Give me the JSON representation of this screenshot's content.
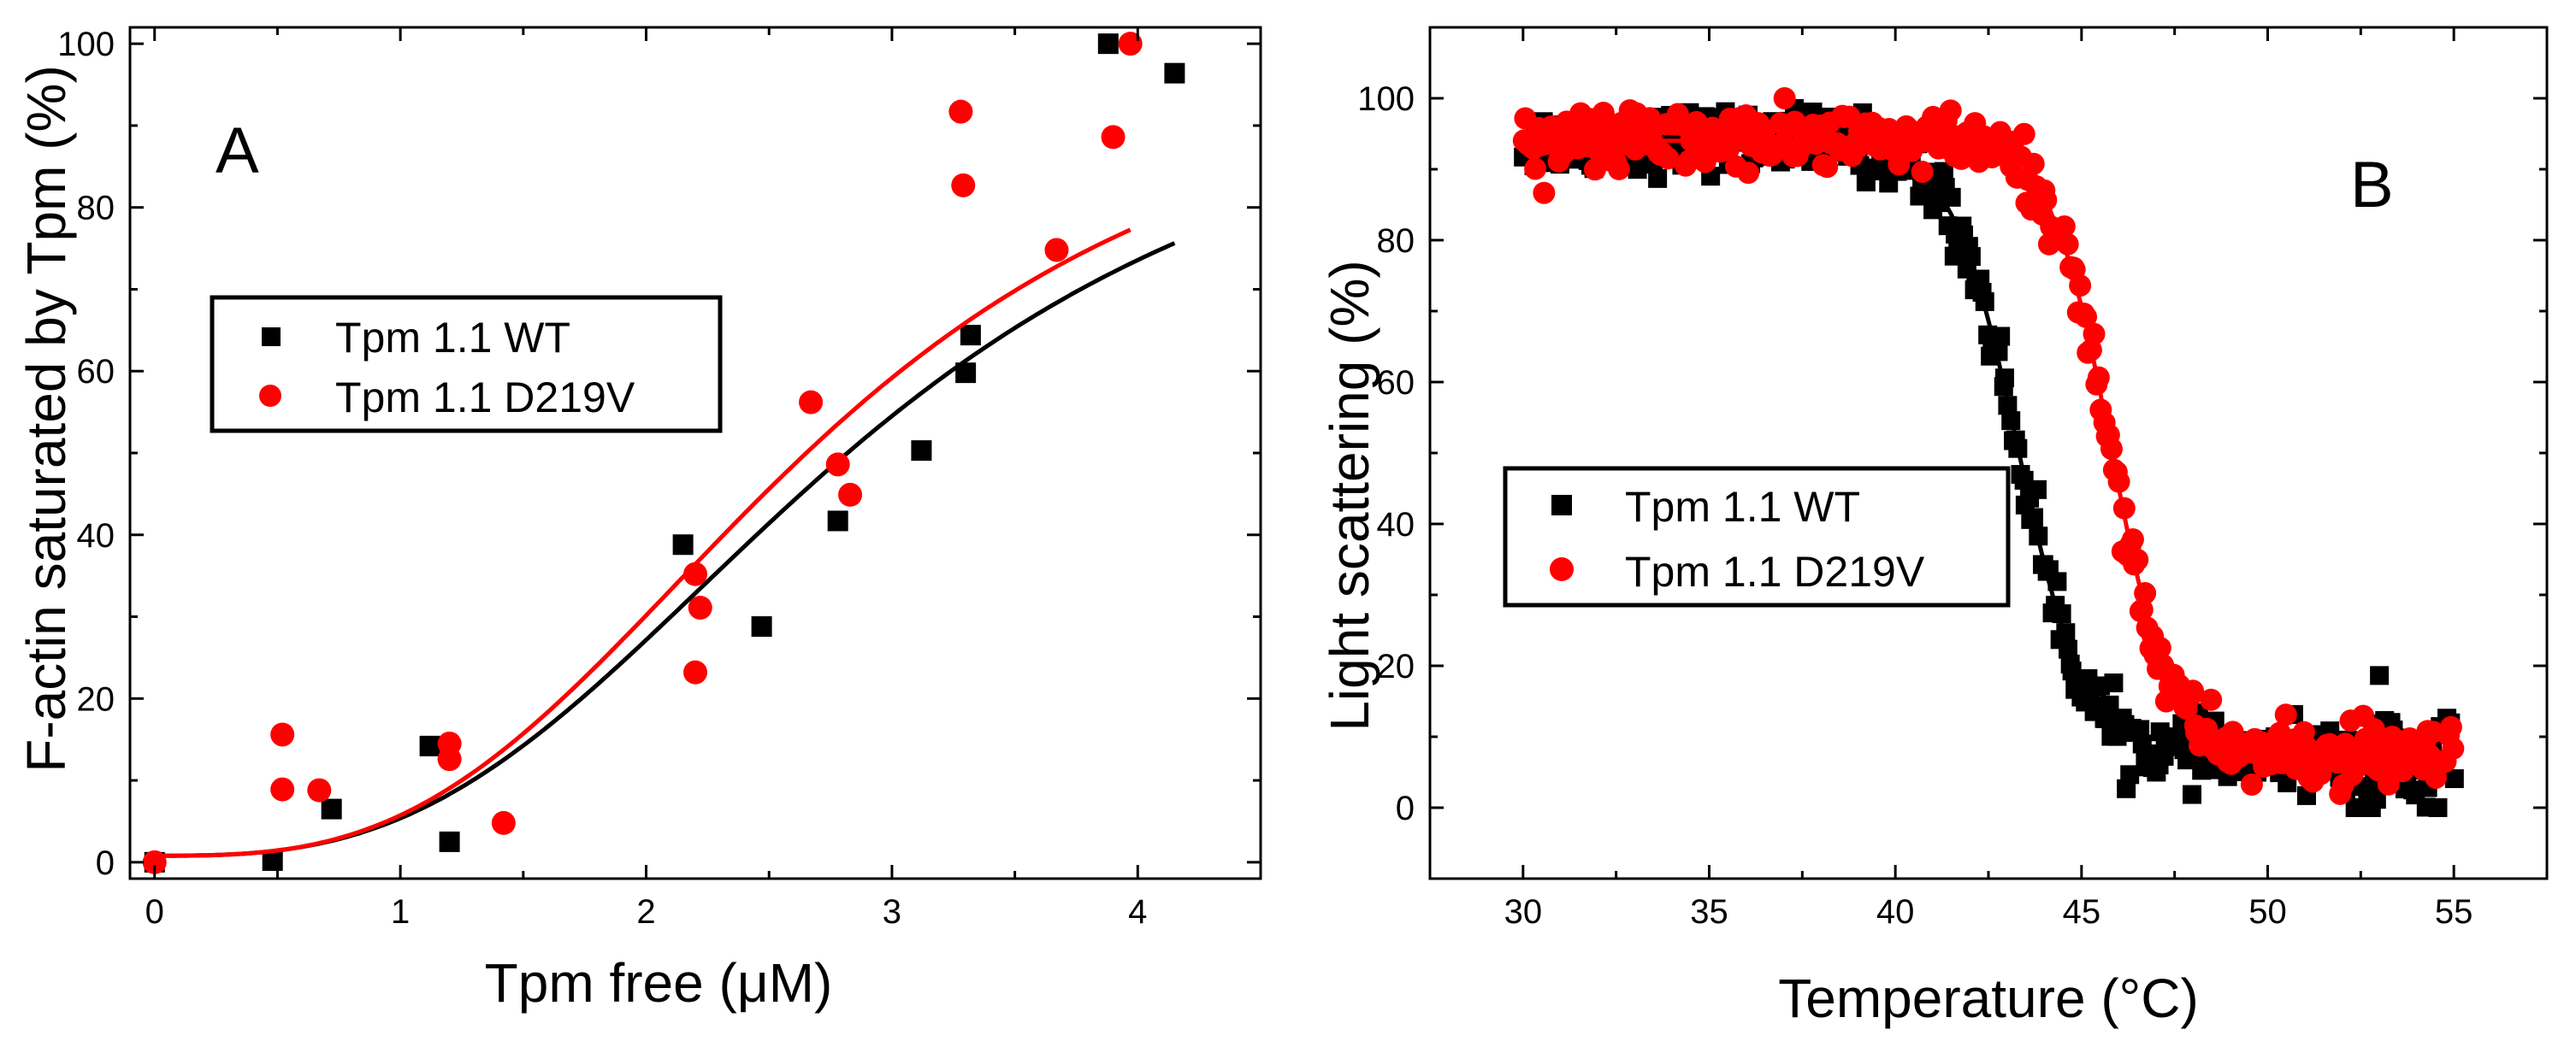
{
  "chart_data": [
    {
      "panel": "A",
      "type": "scatter",
      "panel_label": "A",
      "xlabel": "Tpm free (μM)",
      "ylabel": "F-actin saturated by Tpm (%)",
      "xlim": [
        -0.1,
        4.5
      ],
      "ylim": [
        -2,
        102
      ],
      "xticks": [
        0,
        1,
        2,
        3,
        4
      ],
      "yticks": [
        0,
        20,
        40,
        60,
        80,
        100
      ],
      "legend_position": "upper-left",
      "series": [
        {
          "name": "Tpm 1.1 WT",
          "marker": "square",
          "color": "#000000",
          "points": [
            [
              0,
              0
            ],
            [
              0.48,
              0.2
            ],
            [
              0.72,
              6.5
            ],
            [
              1.12,
              14.2
            ],
            [
              1.2,
              2.5
            ],
            [
              2.15,
              38.8
            ],
            [
              2.47,
              28.8
            ],
            [
              2.78,
              41.7
            ],
            [
              3.12,
              50.3
            ],
            [
              3.3,
              59.8
            ],
            [
              3.32,
              64.4
            ],
            [
              3.88,
              100
            ],
            [
              4.15,
              96.4
            ]
          ],
          "fit": {
            "model": "hill",
            "max": 100,
            "k": 2.85,
            "n": 2.9
          }
        },
        {
          "name": "Tpm 1.1 D219V",
          "marker": "circle",
          "color": "#ff0000",
          "points": [
            [
              0,
              0
            ],
            [
              0.52,
              15.6
            ],
            [
              0.52,
              8.9
            ],
            [
              0.67,
              8.8
            ],
            [
              1.2,
              14.5
            ],
            [
              1.2,
              12.6
            ],
            [
              1.42,
              4.8
            ],
            [
              2.2,
              35.2
            ],
            [
              2.2,
              23.2
            ],
            [
              2.22,
              31.1
            ],
            [
              2.67,
              56.2
            ],
            [
              2.78,
              48.6
            ],
            [
              2.83,
              44.9
            ],
            [
              3.28,
              91.7
            ],
            [
              3.29,
              82.7
            ],
            [
              3.67,
              74.8
            ],
            [
              3.9,
              88.6
            ],
            [
              3.97,
              100
            ]
          ],
          "fit": {
            "model": "hill",
            "max": 100,
            "k": 2.68,
            "n": 3.0
          }
        }
      ]
    },
    {
      "panel": "B",
      "type": "scatter",
      "panel_label": "B",
      "xlabel": "Temperature (°C)",
      "ylabel": "Light scattering (%)",
      "xlim": [
        27.5,
        57.5
      ],
      "ylim": [
        -10,
        110
      ],
      "xticks": [
        30,
        35,
        40,
        45,
        50,
        55
      ],
      "yticks": [
        0,
        20,
        40,
        60,
        80,
        100
      ],
      "legend_position": "middle-left",
      "series": [
        {
          "name": "Tpm 1.1 WT",
          "marker": "square",
          "color": "#000000",
          "x_range": [
            30,
            55
          ],
          "fit": {
            "model": "sigmoid",
            "top": 94,
            "bottom": 7,
            "tm": 43.3,
            "width": 0.9
          }
        },
        {
          "name": "Tpm 1.1 D219V",
          "marker": "circle",
          "color": "#ff0000",
          "x_range": [
            30,
            55
          ],
          "fit": {
            "model": "sigmoid",
            "top": 94,
            "bottom": 7,
            "tm": 45.8,
            "width": 0.8
          }
        }
      ]
    }
  ]
}
